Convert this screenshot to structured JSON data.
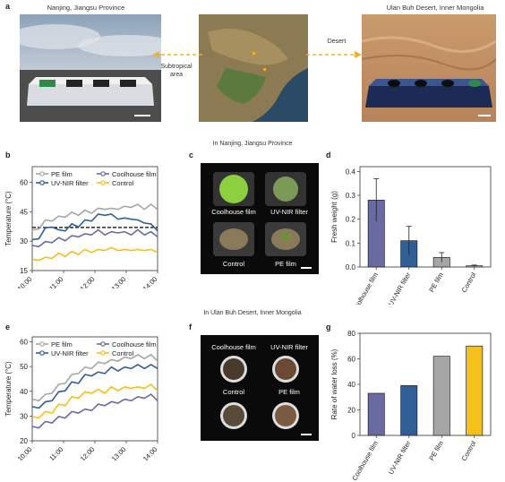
{
  "panel_labels": [
    "a",
    "b",
    "c",
    "d",
    "e",
    "f",
    "g"
  ],
  "panel_a": {
    "left_caption": "Nanjing, Jiangsu Province",
    "right_caption": "Ulan Buh Desert, Inner Mongolia",
    "arrow_left_label": "Subtropical\narea",
    "arrow_right_label": "Desert"
  },
  "section_titles": {
    "nanjing": "In Nanjing, Jiangsu Province",
    "desert": "In Ulan Buh Desert, Inner Mongolia"
  },
  "panel_c": {
    "labels": [
      "Coolhouse film",
      "UV-NIR filter",
      "Control",
      "PE film"
    ]
  },
  "panel_f": {
    "labels": [
      "Coolhouse film",
      "UV-NIR filter",
      "Control",
      "PE film"
    ]
  },
  "colors": {
    "pe": "#a6a6a6",
    "coolhouse": "#6a6aa2",
    "uvnir": "#2e5f97",
    "control": "#f5bf1c"
  },
  "chart_data": [
    {
      "id": "b",
      "type": "line",
      "xlabel": "",
      "ylabel": "Temperature (°C)",
      "x_ticks": [
        "10:00",
        "11:00",
        "12:00",
        "13:00",
        "14:00"
      ],
      "y_ticks": [
        15,
        30,
        45,
        60
      ],
      "ylim": [
        15,
        68
      ],
      "reference_line": 37,
      "series": [
        {
          "name": "PE film",
          "key": "pe",
          "values": [
            35,
            37,
            40,
            41,
            42,
            43,
            44,
            44,
            45,
            45,
            46,
            47,
            46,
            47,
            47,
            48,
            48,
            47,
            48,
            47
          ]
        },
        {
          "name": "Coolhouse film",
          "key": "coolhouse",
          "values": [
            27,
            28,
            29,
            30,
            31,
            31,
            32,
            33,
            33,
            34,
            35,
            34,
            34,
            35,
            34,
            34,
            35,
            34,
            34,
            33
          ]
        },
        {
          "name": "UV-NIR filter",
          "key": "uvnir",
          "values": [
            30,
            32,
            36,
            38,
            35,
            36,
            38,
            38,
            40,
            41,
            43,
            44,
            43,
            42,
            41,
            42,
            40,
            40,
            38,
            36
          ]
        },
        {
          "name": "Control",
          "key": "control",
          "values": [
            20,
            21,
            21,
            22,
            23,
            23,
            24,
            24,
            25,
            25,
            25,
            26,
            26,
            26,
            25,
            26,
            25,
            26,
            25,
            25
          ]
        }
      ],
      "legend": "top"
    },
    {
      "id": "d",
      "type": "bar",
      "ylabel": "Fresh weight (g)",
      "categories": [
        "Coolhouse film",
        "UV-NIR filter",
        "PE film",
        "Control"
      ],
      "values": [
        0.28,
        0.11,
        0.04,
        0.005
      ],
      "errors": [
        0.09,
        0.06,
        0.02,
        0.003
      ],
      "y_ticks": [
        0.0,
        0.1,
        0.2,
        0.3,
        0.4
      ],
      "ylim": [
        0,
        0.42
      ]
    },
    {
      "id": "e",
      "type": "line",
      "xlabel": "",
      "ylabel": "Temperature (°C)",
      "x_ticks": [
        "10:00",
        "11:00",
        "12:00",
        "13:00",
        "14:00"
      ],
      "y_ticks": [
        20,
        30,
        40,
        50,
        60
      ],
      "ylim": [
        20,
        62
      ],
      "series": [
        {
          "name": "PE film",
          "key": "pe",
          "values": [
            36,
            37,
            38,
            40,
            42,
            44,
            46,
            48,
            49,
            50,
            51,
            52,
            52,
            53,
            53,
            54,
            54,
            54,
            54,
            53
          ]
        },
        {
          "name": "Coolhouse film",
          "key": "coolhouse",
          "values": [
            25,
            26,
            27,
            28,
            29,
            30,
            31,
            32,
            32,
            33,
            34,
            35,
            35,
            36,
            36,
            37,
            37,
            38,
            38,
            37
          ]
        },
        {
          "name": "UV-NIR filter",
          "key": "uvnir",
          "values": [
            33,
            34,
            35,
            37,
            39,
            41,
            43,
            44,
            46,
            47,
            47,
            48,
            49,
            49,
            49,
            50,
            50,
            50,
            50,
            50
          ]
        },
        {
          "name": "Control",
          "key": "control",
          "values": [
            29,
            30,
            31,
            32,
            34,
            35,
            37,
            38,
            39,
            40,
            40,
            40,
            41,
            41,
            41,
            42,
            41,
            42,
            42,
            41
          ]
        }
      ],
      "legend": "top"
    },
    {
      "id": "g",
      "type": "bar",
      "ylabel": "Rate of water loss (%)",
      "categories": [
        "Coolhouse film",
        "UV-NIR filter",
        "PE film",
        "Control"
      ],
      "values": [
        33,
        39,
        62,
        70
      ],
      "y_ticks": [
        0,
        20,
        40,
        60,
        80
      ],
      "ylim": [
        0,
        80
      ]
    }
  ]
}
